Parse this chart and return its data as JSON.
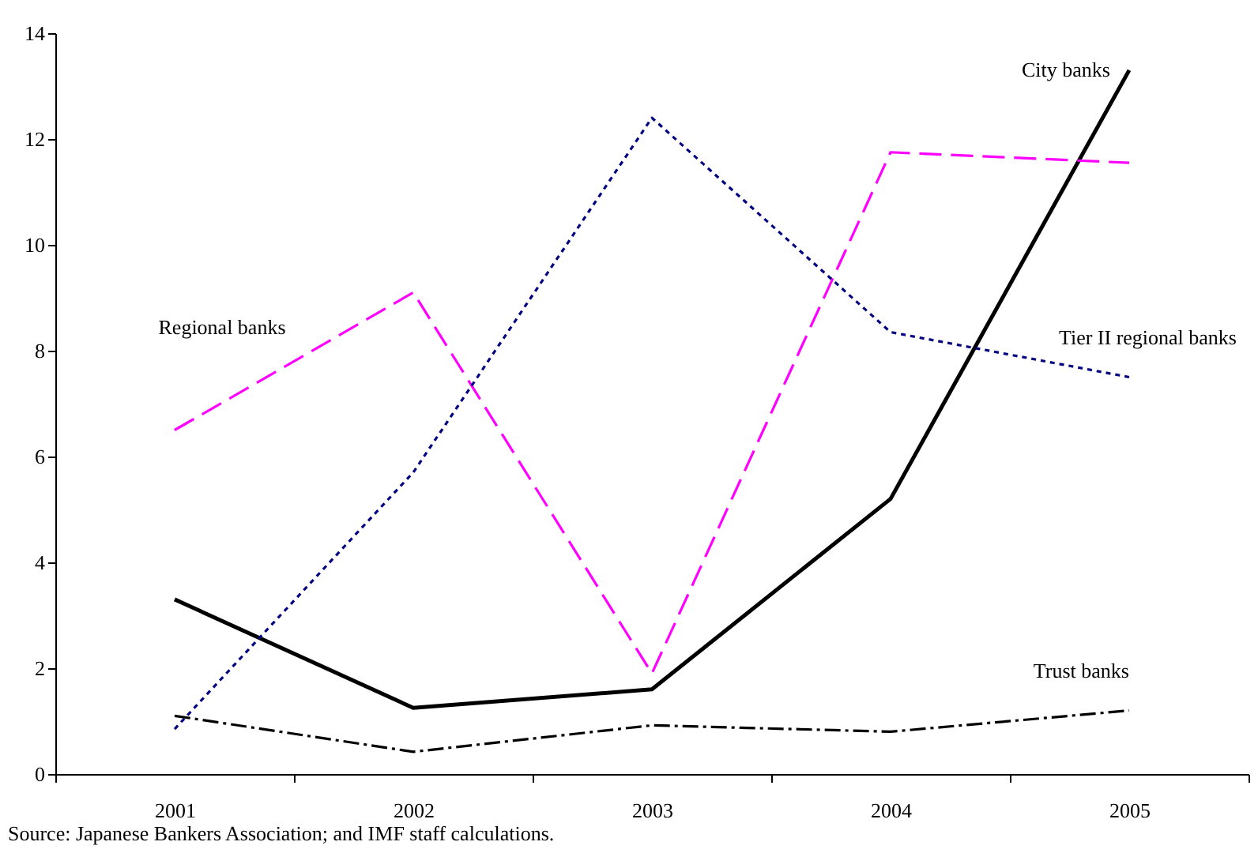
{
  "chart_data": {
    "type": "line",
    "categories": [
      "2001",
      "2002",
      "2003",
      "2004",
      "2005"
    ],
    "ylim": [
      0,
      14
    ],
    "yticks": [
      0,
      2,
      4,
      6,
      8,
      10,
      12,
      14
    ],
    "grid": false,
    "legend": false,
    "marker": "none",
    "series": [
      {
        "name": "City banks",
        "color": "#000000",
        "line_style": "solid",
        "values": [
          3.3,
          1.25,
          1.6,
          5.2,
          13.3
        ]
      },
      {
        "name": "Regional banks",
        "color": "#ff00ff",
        "line_style": "dashed",
        "values": [
          6.5,
          9.1,
          1.9,
          11.75,
          11.55
        ]
      },
      {
        "name": "Tier II regional banks",
        "color": "#000080",
        "line_style": "dotted",
        "values": [
          0.85,
          5.7,
          12.4,
          8.35,
          7.5
        ]
      },
      {
        "name": "Trust banks",
        "color": "#000000",
        "line_style": "dashdot",
        "values": [
          1.1,
          0.42,
          0.92,
          0.8,
          1.2
        ]
      }
    ],
    "annotations": [
      "Source: Japanese Bankers Association; and IMF staff calculations."
    ]
  }
}
